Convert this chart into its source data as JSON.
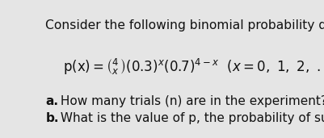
{
  "background_color": "#e5e5e5",
  "title_text": "Consider the following binomial probability distribution.",
  "title_fontsize": 11.2,
  "formula_fontsize": 12.0,
  "question_fontsize": 11.0,
  "text_color": "#111111",
  "label_a": "a.",
  "label_b": "b.",
  "text_a": " How many trials (n) are in the experiment?",
  "text_b": " What is the value of p, the probability of success?"
}
